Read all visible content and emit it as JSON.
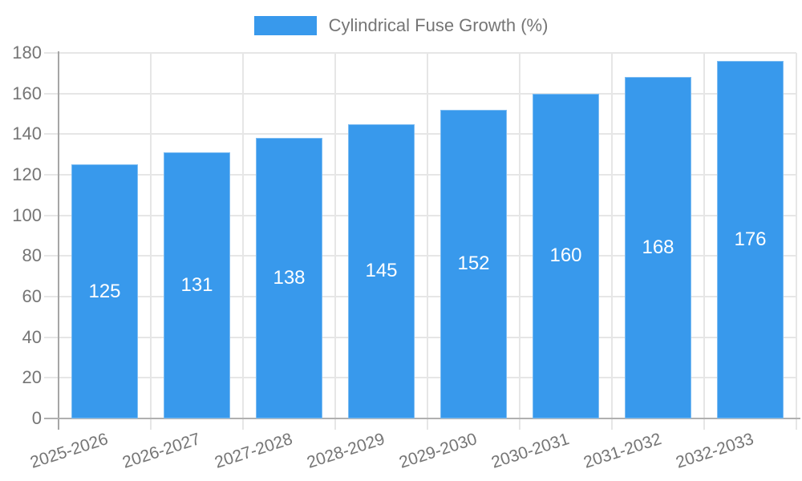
{
  "chart_data": {
    "type": "bar",
    "title": "Cylindrical Fuse Growth (%)",
    "legend": [
      "Cylindrical Fuse Growth (%)"
    ],
    "legend_position": "top-center",
    "categories": [
      "2025-2026",
      "2026-2027",
      "2027-2028",
      "2028-2029",
      "2029-2030",
      "2030-2031",
      "2031-2032",
      "2032-2033"
    ],
    "values": [
      125,
      131,
      138,
      145,
      152,
      160,
      168,
      176
    ],
    "bar_labels": [
      "125",
      "131",
      "138",
      "145",
      "152",
      "160",
      "168",
      "176"
    ],
    "xlabel": "",
    "ylabel": "",
    "ylim": [
      0,
      180
    ],
    "ytick_step": 20,
    "ytick_labels": [
      "0",
      "20",
      "40",
      "60",
      "80",
      "100",
      "120",
      "140",
      "160",
      "180"
    ],
    "grid": true,
    "colors": {
      "bar": "#3899ec",
      "bar_value_label": "#ffffff",
      "axis_text": "#757575",
      "gridline": "#e6e6e6",
      "axis_line": "#a6a6a6"
    }
  }
}
